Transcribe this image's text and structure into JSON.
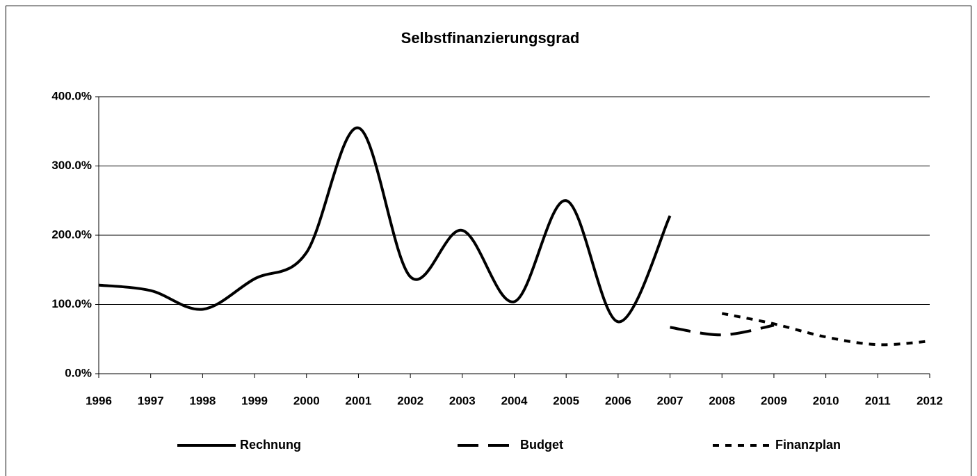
{
  "chart_data": {
    "type": "line",
    "title": "Selbstfinanzierungsgrad",
    "categories": [
      "1996",
      "1997",
      "1998",
      "1999",
      "2000",
      "2001",
      "2002",
      "2003",
      "2004",
      "2005",
      "2006",
      "2007",
      "2008",
      "2009",
      "2010",
      "2011",
      "2012"
    ],
    "series": [
      {
        "name": "Rechnung",
        "color": "#000000",
        "style": "solid",
        "values": [
          128,
          120,
          93,
          137,
          175,
          355,
          140,
          207,
          104,
          250,
          75,
          228,
          null,
          null,
          null,
          null,
          null
        ]
      },
      {
        "name": "Budget",
        "color": "#000000",
        "style": "long-dash",
        "values": [
          null,
          null,
          null,
          null,
          null,
          null,
          null,
          null,
          null,
          null,
          null,
          67,
          56,
          70,
          null,
          null,
          null
        ]
      },
      {
        "name": "Finanzplan",
        "color": "#000000",
        "style": "short-dash",
        "values": [
          null,
          null,
          null,
          null,
          null,
          null,
          null,
          null,
          null,
          null,
          null,
          null,
          87,
          72,
          53,
          42,
          47
        ]
      }
    ],
    "ylim": [
      0,
      400
    ],
    "yticks": [
      {
        "value": 0,
        "label": "0.0%"
      },
      {
        "value": 100,
        "label": "100.0%"
      },
      {
        "value": 200,
        "label": "200.0%"
      },
      {
        "value": 300,
        "label": "300.0%"
      },
      {
        "value": 400,
        "label": "400.0%"
      }
    ],
    "grid": true,
    "legend": "bottom",
    "smooth": true
  }
}
